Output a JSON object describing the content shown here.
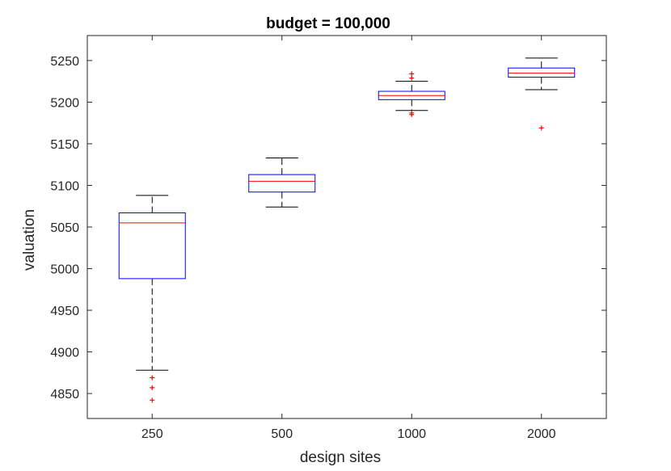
{
  "chart_data": {
    "type": "boxplot",
    "title": "budget = 100,000",
    "xlabel": "design sites",
    "ylabel": "valuation",
    "categories": [
      "250",
      "500",
      "1000",
      "2000"
    ],
    "ylim": [
      4820,
      5280
    ],
    "yticks": [
      4850,
      4900,
      4950,
      5000,
      5050,
      5100,
      5150,
      5200,
      5250
    ],
    "grid": false,
    "colors": {
      "box": "#0000ff",
      "median": "#ff0000",
      "whisker": "#000000",
      "outlier": "#ff0000",
      "axes": "#262626"
    },
    "boxes": [
      {
        "category": "250",
        "whisker_low": 4878,
        "q1": 4988,
        "median": 5055,
        "q3": 5067,
        "whisker_high": 5088,
        "outliers": [
          4869,
          4857,
          4842
        ]
      },
      {
        "category": "500",
        "whisker_low": 5074,
        "q1": 5092,
        "median": 5105,
        "q3": 5113,
        "whisker_high": 5133,
        "outliers": []
      },
      {
        "category": "1000",
        "whisker_low": 5190,
        "q1": 5203,
        "median": 5208,
        "q3": 5213,
        "whisker_high": 5225,
        "outliers": [
          5234,
          5229,
          5187,
          5185
        ]
      },
      {
        "category": "2000",
        "whisker_low": 5215,
        "q1": 5230,
        "median": 5235,
        "q3": 5241,
        "whisker_high": 5253,
        "outliers": [
          5169
        ]
      }
    ]
  }
}
